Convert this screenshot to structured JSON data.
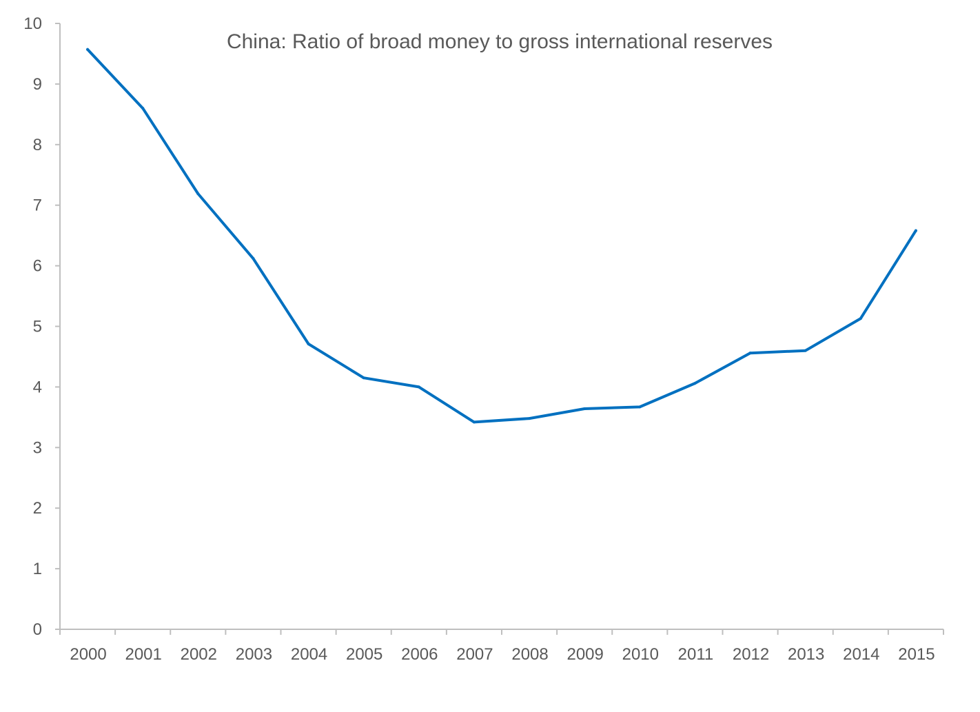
{
  "chart_data": {
    "type": "line",
    "title": "China: Ratio of broad money to gross international reserves",
    "xlabel": "",
    "ylabel": "",
    "categories": [
      "2000",
      "2001",
      "2002",
      "2003",
      "2004",
      "2005",
      "2006",
      "2007",
      "2008",
      "2009",
      "2010",
      "2011",
      "2012",
      "2013",
      "2014",
      "2015"
    ],
    "series": [
      {
        "values": [
          9.57,
          8.6,
          7.19,
          6.12,
          4.71,
          4.15,
          4.0,
          3.42,
          3.48,
          3.64,
          3.67,
          4.06,
          4.56,
          4.6,
          5.13,
          6.58
        ],
        "color": "#0070C0"
      }
    ],
    "ylim": [
      0,
      10
    ],
    "yticks": [
      0,
      1,
      2,
      3,
      4,
      5,
      6,
      7,
      8,
      9,
      10
    ],
    "grid": false,
    "legend": "none",
    "axis_color": "#BFBFBF",
    "text_color": "#595959"
  }
}
